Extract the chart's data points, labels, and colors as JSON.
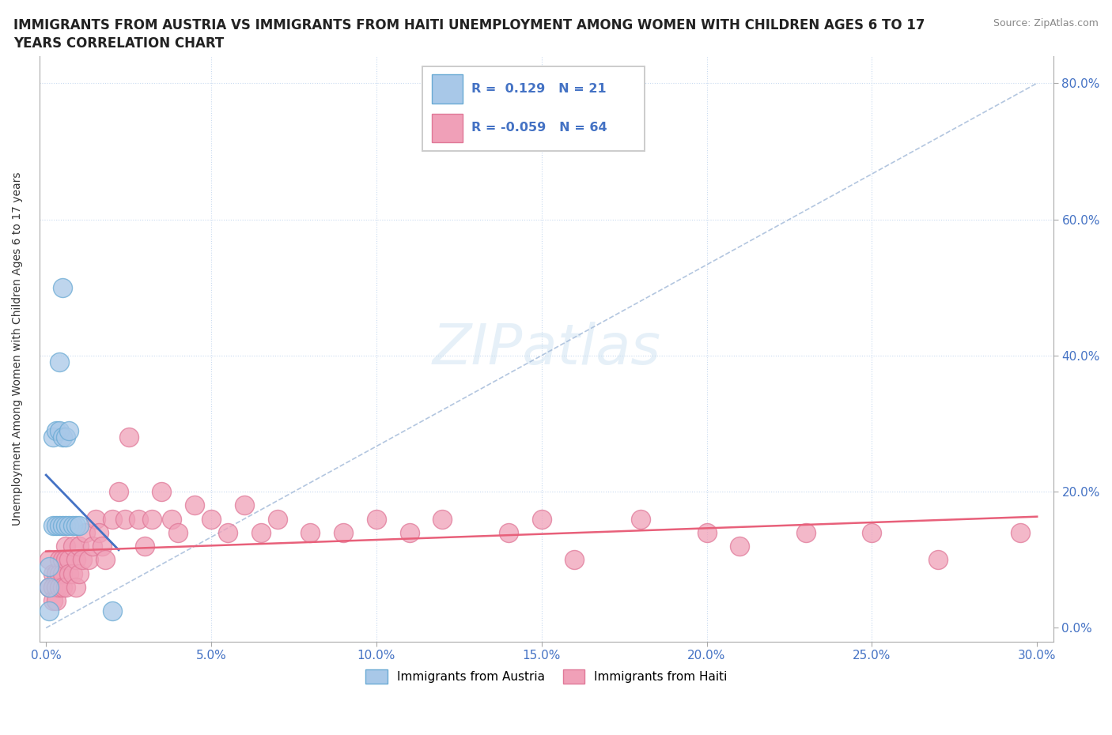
{
  "title_line1": "IMMIGRANTS FROM AUSTRIA VS IMMIGRANTS FROM HAITI UNEMPLOYMENT AMONG WOMEN WITH CHILDREN AGES 6 TO 17",
  "title_line2": "YEARS CORRELATION CHART",
  "ylabel": "Unemployment Among Women with Children Ages 6 to 17 years",
  "source": "Source: ZipAtlas.com",
  "austria_r": 0.129,
  "austria_n": 21,
  "haiti_r": -0.059,
  "haiti_n": 64,
  "xlim": [
    -0.002,
    0.305
  ],
  "ylim": [
    -0.02,
    0.84
  ],
  "xticks": [
    0.0,
    0.05,
    0.1,
    0.15,
    0.2,
    0.25,
    0.3
  ],
  "yticks": [
    0.0,
    0.2,
    0.4,
    0.6,
    0.8
  ],
  "austria_fill": "#a8c8e8",
  "austria_edge": "#6aaad4",
  "haiti_fill": "#f0a0b8",
  "haiti_edge": "#e07898",
  "austria_line_color": "#4472c4",
  "haiti_line_color": "#e8607a",
  "ref_line_color": "#a0b8d8",
  "grid_color": "#c8daf0",
  "austria_x": [
    0.001,
    0.001,
    0.001,
    0.002,
    0.002,
    0.003,
    0.003,
    0.004,
    0.004,
    0.004,
    0.005,
    0.005,
    0.005,
    0.006,
    0.006,
    0.007,
    0.007,
    0.008,
    0.009,
    0.01,
    0.02
  ],
  "austria_y": [
    0.025,
    0.06,
    0.09,
    0.15,
    0.28,
    0.15,
    0.29,
    0.15,
    0.29,
    0.39,
    0.15,
    0.28,
    0.5,
    0.15,
    0.28,
    0.15,
    0.29,
    0.15,
    0.15,
    0.15,
    0.025
  ],
  "haiti_x": [
    0.001,
    0.001,
    0.002,
    0.002,
    0.002,
    0.003,
    0.003,
    0.003,
    0.004,
    0.004,
    0.004,
    0.005,
    0.005,
    0.005,
    0.006,
    0.006,
    0.006,
    0.007,
    0.007,
    0.008,
    0.008,
    0.009,
    0.009,
    0.01,
    0.01,
    0.011,
    0.012,
    0.013,
    0.014,
    0.015,
    0.016,
    0.017,
    0.018,
    0.02,
    0.022,
    0.024,
    0.025,
    0.028,
    0.03,
    0.032,
    0.035,
    0.038,
    0.04,
    0.045,
    0.05,
    0.055,
    0.06,
    0.065,
    0.07,
    0.08,
    0.09,
    0.1,
    0.11,
    0.12,
    0.14,
    0.15,
    0.16,
    0.18,
    0.2,
    0.21,
    0.23,
    0.25,
    0.27,
    0.295
  ],
  "haiti_y": [
    0.1,
    0.06,
    0.08,
    0.06,
    0.04,
    0.08,
    0.06,
    0.04,
    0.1,
    0.08,
    0.06,
    0.1,
    0.08,
    0.06,
    0.12,
    0.1,
    0.06,
    0.1,
    0.08,
    0.12,
    0.08,
    0.1,
    0.06,
    0.12,
    0.08,
    0.1,
    0.14,
    0.1,
    0.12,
    0.16,
    0.14,
    0.12,
    0.1,
    0.16,
    0.2,
    0.16,
    0.28,
    0.16,
    0.12,
    0.16,
    0.2,
    0.16,
    0.14,
    0.18,
    0.16,
    0.14,
    0.18,
    0.14,
    0.16,
    0.14,
    0.14,
    0.16,
    0.14,
    0.16,
    0.14,
    0.16,
    0.1,
    0.16,
    0.14,
    0.12,
    0.14,
    0.14,
    0.1,
    0.14
  ]
}
